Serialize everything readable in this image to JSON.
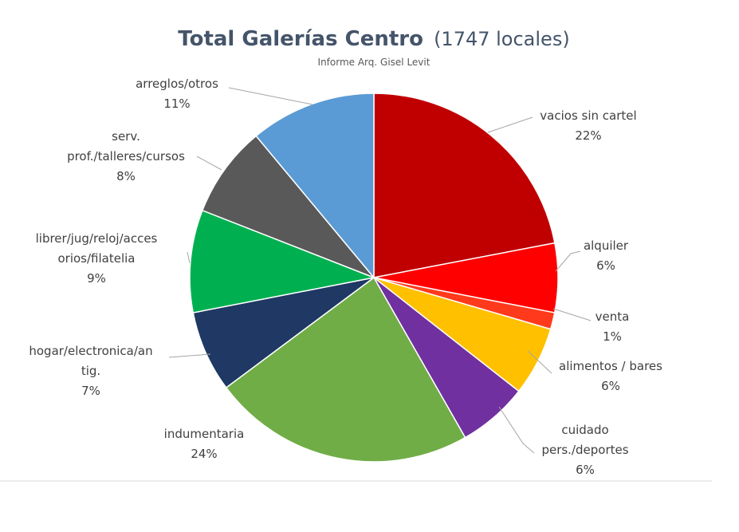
{
  "chart_data": {
    "type": "pie",
    "title": "Total Galerías Centro",
    "title_suffix": "(1747 locales)",
    "subtitle": "Informe Arq. Gisel Levit",
    "start_angle_deg": 0,
    "direction": "clockwise",
    "slices": [
      {
        "label_lines": [
          "vacios sin cartel"
        ],
        "percent_label": "22%",
        "value": 22.5,
        "color": "#c00000"
      },
      {
        "label_lines": [
          "alquiler"
        ],
        "percent_label": "6%",
        "value": 6.2,
        "color": "#ff0000"
      },
      {
        "label_lines": [
          "venta"
        ],
        "percent_label": "1%",
        "value": 1.5,
        "color": "#ff3a1c"
      },
      {
        "label_lines": [
          "alimentos / bares"
        ],
        "percent_label": "6%",
        "value": 6.2,
        "color": "#ffc000"
      },
      {
        "label_lines": [
          "cuidado",
          "pers./deportes"
        ],
        "percent_label": "6%",
        "value": 6.3,
        "color": "#7030a0"
      },
      {
        "label_lines": [
          "indumentaria"
        ],
        "percent_label": "24%",
        "value": 23.6,
        "color": "#70ad47"
      },
      {
        "label_lines": [
          "hogar/electronica/an",
          "tig."
        ],
        "percent_label": "7%",
        "value": 7.3,
        "color": "#1f3864"
      },
      {
        "label_lines": [
          "librer/jug/reloj/acces",
          "orios/filatelia"
        ],
        "percent_label": "9%",
        "value": 9.2,
        "color": "#00b050"
      },
      {
        "label_lines": [
          "serv.",
          "prof./talleres/cursos"
        ],
        "percent_label": "8%",
        "value": 8.2,
        "color": "#595959"
      },
      {
        "label_lines": [
          "arreglos/otros"
        ],
        "percent_label": "11%",
        "value": 11.3,
        "color": "#5b9bd5"
      }
    ]
  }
}
